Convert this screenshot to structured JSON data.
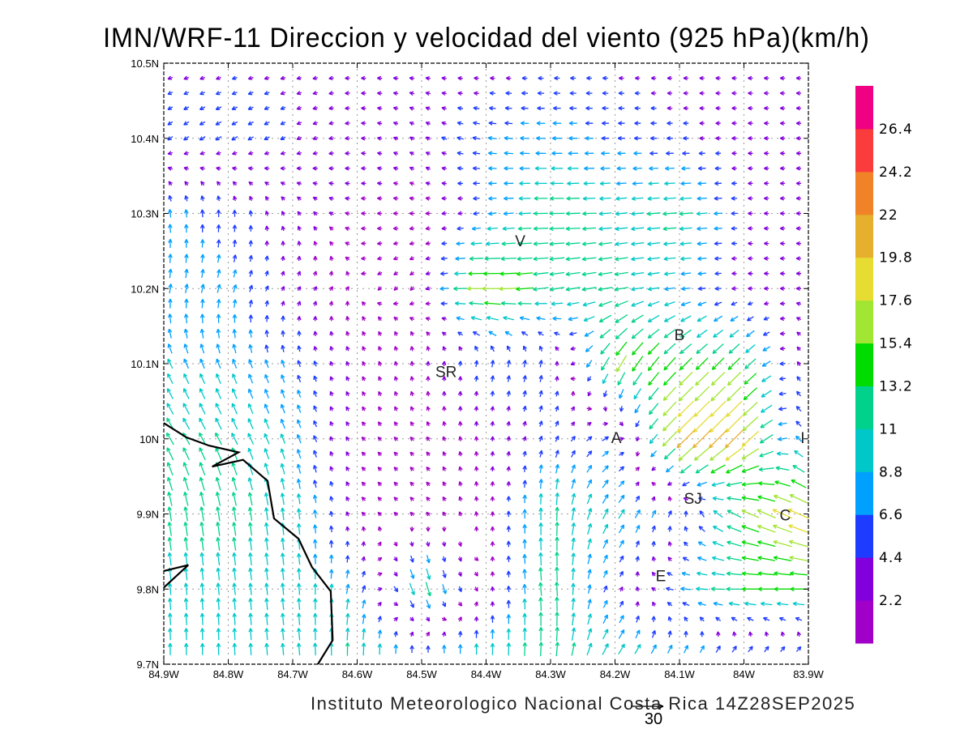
{
  "title": "IMN/WRF-11 Direccion y velocidad del viento (925 hPa)(km/h)",
  "credit": "Instituto Meteorologico Nacional Costa Rica 14Z28SEP2025",
  "reference_vector": {
    "label": "30",
    "speed": 30
  },
  "chart_data": {
    "type": "vector-field",
    "units": "km/h",
    "level": "925 hPa",
    "lon_range": [
      -84.9,
      -83.9
    ],
    "lat_range": [
      9.7,
      10.5
    ],
    "x_ticks": [
      {
        "v": -84.9,
        "label": "84.9W"
      },
      {
        "v": -84.8,
        "label": "84.8W"
      },
      {
        "v": -84.7,
        "label": "84.7W"
      },
      {
        "v": -84.6,
        "label": "84.6W"
      },
      {
        "v": -84.5,
        "label": "84.5W"
      },
      {
        "v": -84.4,
        "label": "84.4W"
      },
      {
        "v": -84.3,
        "label": "84.3W"
      },
      {
        "v": -84.2,
        "label": "84.2W"
      },
      {
        "v": -84.1,
        "label": "84.1W"
      },
      {
        "v": -84.0,
        "label": "84W"
      },
      {
        "v": -83.9,
        "label": "83.9W"
      }
    ],
    "y_ticks": [
      {
        "v": 9.7,
        "label": "9.7N"
      },
      {
        "v": 9.8,
        "label": "9.8N"
      },
      {
        "v": 9.9,
        "label": "9.9N"
      },
      {
        "v": 10.0,
        "label": "10N"
      },
      {
        "v": 10.1,
        "label": "10.1N"
      },
      {
        "v": 10.2,
        "label": "10.2N"
      },
      {
        "v": 10.3,
        "label": "10.3N"
      },
      {
        "v": 10.4,
        "label": "10.4N"
      },
      {
        "v": 10.5,
        "label": "10.5N"
      }
    ],
    "grid": true,
    "colorbar": {
      "placement": "right",
      "levels": [
        "2.2",
        "4.4",
        "6.6",
        "8.8",
        "11",
        "13.2",
        "15.4",
        "17.6",
        "19.8",
        "22",
        "24.2",
        "26.4"
      ],
      "colors": [
        "#a000c8",
        "#8200dc",
        "#1e3cff",
        "#00a0ff",
        "#00c8c8",
        "#00d28c",
        "#00dc00",
        "#a0e632",
        "#e6dc32",
        "#e6af2d",
        "#f08228",
        "#fa3c3c",
        "#f00082"
      ]
    },
    "wind_grid": {
      "lats": [
        10.5,
        10.4,
        10.3,
        10.2,
        10.1,
        10.0,
        9.9,
        9.8,
        9.7
      ],
      "lons": [
        -84.9,
        -84.8,
        -84.7,
        -84.6,
        -84.5,
        -84.4,
        -84.3,
        -84.2,
        -84.1,
        -84.0,
        -83.9
      ],
      "u": [
        [
          -4,
          -4,
          -4,
          -3,
          -3,
          -3,
          -4,
          -4,
          -3,
          -3,
          -3
        ],
        [
          -4,
          -5,
          -4,
          -3,
          -3,
          -7,
          -8,
          -6,
          -5,
          -3,
          -3
        ],
        [
          -1,
          0,
          -2,
          -2,
          -1,
          -6,
          -13,
          -10,
          -12,
          -4,
          -3
        ],
        [
          1,
          2,
          2,
          0,
          -1,
          -18,
          -12,
          -12,
          -8,
          -3,
          -3
        ],
        [
          -4,
          -3,
          -2,
          -1,
          0,
          1,
          1,
          -8,
          -10,
          -10,
          -1
        ],
        [
          -6,
          -5,
          -3,
          -1,
          -1,
          0,
          2,
          6,
          -15,
          -15,
          -3
        ],
        [
          -2,
          -2,
          -1,
          -1,
          -1,
          0,
          0,
          5,
          2,
          -14,
          -18
        ],
        [
          -1,
          -1,
          -1,
          2,
          4,
          0,
          -1,
          3,
          -8,
          -14,
          -14
        ],
        [
          0,
          0,
          -1,
          0,
          -1,
          0,
          1,
          6,
          6,
          8,
          8
        ]
      ],
      "v": [
        [
          -1,
          -1,
          -1,
          0,
          0,
          0,
          0,
          0,
          0,
          0,
          0
        ],
        [
          -3,
          -3,
          -2,
          0,
          2,
          1,
          0,
          0,
          0,
          0,
          0
        ],
        [
          7,
          6,
          3,
          0,
          0,
          -1,
          0,
          -1,
          -1,
          0,
          0
        ],
        [
          8,
          7,
          3,
          0,
          -1,
          0,
          -2,
          -2,
          -1,
          0,
          0
        ],
        [
          8,
          8,
          6,
          2,
          2,
          6,
          6,
          -14,
          -10,
          -10,
          6
        ],
        [
          10,
          10,
          8,
          1,
          1,
          2,
          5,
          3,
          -15,
          -15,
          8
        ],
        [
          12,
          12,
          10,
          1,
          1,
          1,
          12,
          8,
          5,
          6,
          8
        ],
        [
          10,
          10,
          10,
          8,
          -13,
          1,
          13,
          4,
          1,
          0,
          0
        ],
        [
          10,
          10,
          10,
          12,
          10,
          12,
          12,
          10,
          8,
          6,
          5
        ]
      ]
    },
    "coastline": [
      [
        [
          -84.9,
          10.021
        ],
        [
          -84.865,
          10.002
        ],
        [
          -84.83,
          9.991
        ],
        [
          -84.784,
          9.982
        ],
        [
          -84.825,
          9.963
        ],
        [
          -84.777,
          9.972
        ],
        [
          -84.739,
          9.944
        ],
        [
          -84.729,
          9.894
        ],
        [
          -84.691,
          9.867
        ],
        [
          -84.67,
          9.829
        ],
        [
          -84.641,
          9.797
        ],
        [
          -84.638,
          9.732
        ],
        [
          -84.661,
          9.7
        ]
      ],
      [
        [
          -84.9,
          9.824
        ],
        [
          -84.862,
          9.832
        ],
        [
          -84.9,
          9.802
        ]
      ]
    ],
    "places": [
      {
        "label": "V",
        "lon": -84.347,
        "lat": 10.264
      },
      {
        "label": "SR",
        "lon": -84.462,
        "lat": 10.09
      },
      {
        "label": "B",
        "lon": -84.1,
        "lat": 10.139
      },
      {
        "label": "A",
        "lon": -84.198,
        "lat": 10.002
      },
      {
        "label": "I",
        "lon": -83.909,
        "lat": 10.002
      },
      {
        "label": "SJ",
        "lon": -84.079,
        "lat": 9.921
      },
      {
        "label": "C",
        "lon": -83.936,
        "lat": 9.899
      },
      {
        "label": "E",
        "lon": -84.129,
        "lat": 9.818
      }
    ]
  }
}
